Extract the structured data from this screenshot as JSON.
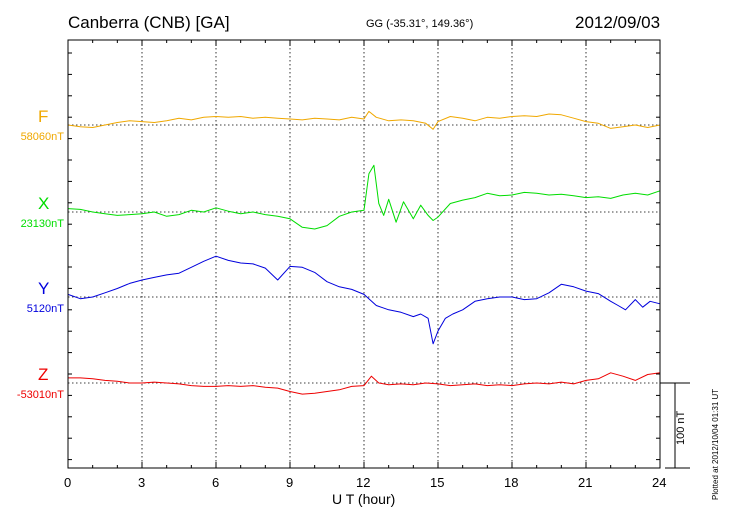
{
  "header": {
    "station": "Canberra (CNB)  [GA]",
    "coords": "GG (-35.31°, 149.36°)",
    "date": "2012/09/03"
  },
  "xlabel": "U T (hour)",
  "scale_label": "100 nT",
  "footer_note": "Plotted at 2012/10/04 01:31 UT",
  "colors": {
    "F": "#f0a800",
    "X": "#00dd00",
    "Y": "#0000dd",
    "Z": "#ee0000",
    "axis": "#000000"
  },
  "chart_data": {
    "type": "line",
    "x_ticks": [
      0,
      3,
      6,
      9,
      12,
      15,
      18,
      21,
      24
    ],
    "xlim": [
      0,
      24
    ],
    "xlabel": "U T (hour)",
    "scale_bar_nT": 100,
    "series": [
      {
        "name": "F",
        "baseline_label": "58060nT",
        "x": [
          0,
          0.5,
          1,
          1.5,
          2,
          2.5,
          3,
          3.5,
          4,
          4.5,
          5,
          5.5,
          6,
          6.5,
          7,
          7.5,
          8,
          8.5,
          9,
          9.5,
          10,
          10.5,
          11,
          11.5,
          12,
          12.2,
          12.5,
          13,
          13.5,
          14,
          14.5,
          14.8,
          15,
          15.5,
          16,
          16.5,
          17,
          17.5,
          18,
          18.5,
          19,
          19.5,
          20,
          20.5,
          21,
          21.5,
          22,
          22.5,
          23,
          23.5,
          24
        ],
        "values": [
          0,
          -2,
          -3,
          0,
          3,
          5,
          4,
          3,
          5,
          8,
          6,
          9,
          10,
          9,
          10,
          8,
          9,
          8,
          7,
          6,
          8,
          7,
          6,
          9,
          7,
          16,
          9,
          5,
          6,
          5,
          2,
          -5,
          4,
          10,
          8,
          5,
          9,
          8,
          10,
          11,
          10,
          13,
          12,
          8,
          4,
          2,
          -4,
          -2,
          0,
          -3,
          0
        ]
      },
      {
        "name": "X",
        "baseline_label": "23130nT",
        "x": [
          0,
          0.5,
          1,
          1.5,
          2,
          2.5,
          3,
          3.5,
          4,
          4.5,
          5,
          5.5,
          6,
          6.5,
          7,
          7.5,
          8,
          8.5,
          9,
          9.5,
          10,
          10.5,
          11,
          11.5,
          12,
          12.2,
          12.4,
          12.6,
          12.8,
          13,
          13.3,
          13.6,
          14,
          14.3,
          14.6,
          14.8,
          15,
          15.5,
          16,
          16.5,
          17,
          17.5,
          18,
          18.5,
          19,
          19.5,
          20,
          20.5,
          21,
          21.5,
          22,
          22.5,
          23,
          23.5,
          24
        ],
        "values": [
          4,
          3,
          0,
          -2,
          -4,
          -3,
          -2,
          0,
          -5,
          -3,
          2,
          0,
          5,
          1,
          -2,
          0,
          -3,
          -5,
          -8,
          -18,
          -20,
          -16,
          -5,
          0,
          2,
          45,
          55,
          10,
          -4,
          15,
          -12,
          12,
          -8,
          8,
          -4,
          -10,
          -6,
          10,
          14,
          17,
          22,
          19,
          20,
          23,
          22,
          20,
          21,
          19,
          17,
          18,
          16,
          20,
          22,
          20,
          25
        ]
      },
      {
        "name": "Y",
        "baseline_label": "5120nT",
        "x": [
          0,
          0.5,
          1,
          1.5,
          2,
          2.5,
          3,
          3.5,
          4,
          4.5,
          5,
          5.5,
          6,
          6.5,
          7,
          7.5,
          8,
          8.5,
          9,
          9.5,
          10,
          10.5,
          11,
          11.5,
          12,
          12.5,
          13,
          13.5,
          14,
          14.3,
          14.6,
          14.8,
          15,
          15.3,
          15.6,
          16,
          16.5,
          17,
          17.5,
          18,
          18.5,
          19,
          19.5,
          20,
          20.5,
          21,
          21.5,
          22,
          22.3,
          22.6,
          23,
          23.3,
          23.6,
          24
        ],
        "values": [
          3,
          -2,
          0,
          5,
          10,
          16,
          20,
          23,
          26,
          28,
          35,
          42,
          48,
          43,
          40,
          39,
          34,
          20,
          36,
          35,
          29,
          18,
          12,
          9,
          3,
          -10,
          -15,
          -18,
          -23,
          -20,
          -25,
          -55,
          -40,
          -25,
          -20,
          -15,
          -5,
          -2,
          0,
          0,
          -3,
          -2,
          5,
          15,
          12,
          7,
          4,
          -5,
          -10,
          -15,
          -3,
          -12,
          -5,
          -8
        ]
      },
      {
        "name": "Z",
        "baseline_label": "-53010nT",
        "x": [
          0,
          0.5,
          1,
          1.5,
          2,
          2.5,
          3,
          3.5,
          4,
          4.5,
          5,
          5.5,
          6,
          6.5,
          7,
          7.5,
          8,
          8.5,
          9,
          9.5,
          10,
          10.5,
          11,
          11.5,
          12,
          12.3,
          12.6,
          13,
          13.5,
          14,
          14.5,
          15,
          15.5,
          16,
          16.5,
          17,
          17.5,
          18,
          18.5,
          19,
          19.5,
          20,
          20.5,
          21,
          21.5,
          22,
          22.5,
          23,
          23.5,
          24
        ],
        "values": [
          6,
          6,
          5,
          3,
          2,
          0,
          0,
          1,
          0,
          -1,
          -3,
          -4,
          -4,
          -3,
          -4,
          -3,
          -5,
          -6,
          -10,
          -13,
          -12,
          -10,
          -8,
          -4,
          -3,
          8,
          0,
          -2,
          -1,
          -2,
          0,
          -1,
          -3,
          -2,
          -1,
          -3,
          -2,
          -3,
          -1,
          0,
          -1,
          1,
          -1,
          3,
          5,
          12,
          8,
          3,
          10,
          12
        ]
      }
    ]
  }
}
